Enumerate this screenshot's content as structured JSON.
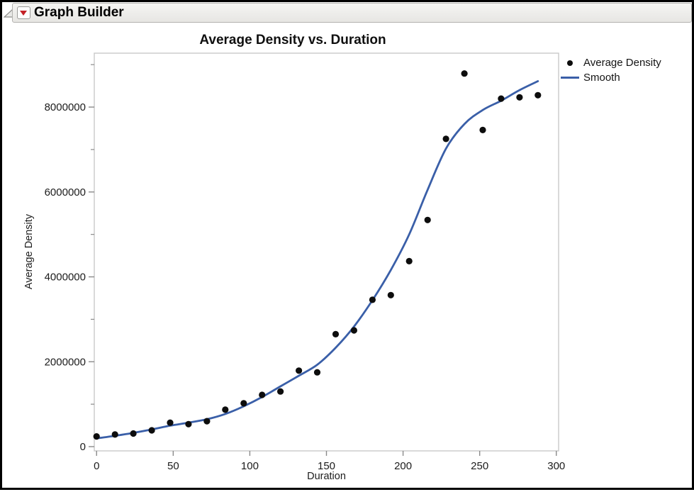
{
  "window": {
    "title": "Graph Builder"
  },
  "header": {
    "disclosure_icon": "outline-collapse-triangle",
    "menu_icon": "red-dropdown-triangle"
  },
  "colors": {
    "point": "#0d0d0d",
    "smooth_line": "#3a5fa8",
    "frame": "#c9c9c9",
    "tick": "#8a8a8a",
    "tick_text": "#1c1c1c",
    "header_red": "#c42127"
  },
  "chart_data": {
    "type": "scatter",
    "title": "Average Density vs. Duration",
    "xlabel": "Duration",
    "ylabel": "Average Density",
    "xlim": [
      -1.5,
      301.5
    ],
    "ylim": [
      -100000,
      9270000
    ],
    "grid": false,
    "x_ticks": [
      0,
      50,
      100,
      150,
      200,
      250,
      300
    ],
    "x_tick_labels": [
      "0",
      "50",
      "100",
      "150",
      "200",
      "250",
      "300"
    ],
    "y_ticks_major": [
      0,
      2000000,
      4000000,
      6000000,
      8000000
    ],
    "y_tick_labels": [
      "0",
      "2000000",
      "4000000",
      "6000000",
      "8000000"
    ],
    "y_ticks_minor": [
      1000000,
      3000000,
      5000000,
      7000000,
      9000000
    ],
    "legend": {
      "position": "top-right",
      "entries": [
        {
          "label": "Average Density",
          "marker": "dot",
          "color": "#0d0d0d"
        },
        {
          "label": "Smooth",
          "marker": "line",
          "color": "#3a5fa8"
        }
      ]
    },
    "series": [
      {
        "name": "Average Density",
        "type": "scatter",
        "color": "#0d0d0d",
        "points": [
          [
            0,
            240000
          ],
          [
            12,
            285000
          ],
          [
            24,
            310000
          ],
          [
            36,
            385000
          ],
          [
            48,
            565000
          ],
          [
            60,
            530000
          ],
          [
            72,
            600000
          ],
          [
            84,
            870000
          ],
          [
            96,
            1020000
          ],
          [
            108,
            1220000
          ],
          [
            120,
            1300000
          ],
          [
            132,
            1790000
          ],
          [
            144,
            1750000
          ],
          [
            156,
            2650000
          ],
          [
            168,
            2740000
          ],
          [
            180,
            3460000
          ],
          [
            192,
            3570000
          ],
          [
            204,
            4370000
          ],
          [
            216,
            5340000
          ],
          [
            228,
            7250000
          ],
          [
            240,
            8790000
          ],
          [
            252,
            7460000
          ],
          [
            264,
            8200000
          ],
          [
            276,
            8230000
          ],
          [
            288,
            8280000
          ]
        ]
      },
      {
        "name": "Smooth",
        "type": "line",
        "color": "#3a5fa8",
        "points": [
          [
            0,
            195000
          ],
          [
            12,
            255000
          ],
          [
            24,
            325000
          ],
          [
            36,
            405000
          ],
          [
            48,
            495000
          ],
          [
            60,
            565000
          ],
          [
            72,
            645000
          ],
          [
            84,
            770000
          ],
          [
            96,
            950000
          ],
          [
            108,
            1170000
          ],
          [
            120,
            1420000
          ],
          [
            132,
            1670000
          ],
          [
            144,
            1930000
          ],
          [
            156,
            2330000
          ],
          [
            168,
            2830000
          ],
          [
            180,
            3450000
          ],
          [
            192,
            4160000
          ],
          [
            204,
            5000000
          ],
          [
            216,
            6050000
          ],
          [
            228,
            7020000
          ],
          [
            240,
            7600000
          ],
          [
            252,
            7930000
          ],
          [
            264,
            8150000
          ],
          [
            276,
            8400000
          ],
          [
            288,
            8610000
          ]
        ]
      }
    ]
  }
}
